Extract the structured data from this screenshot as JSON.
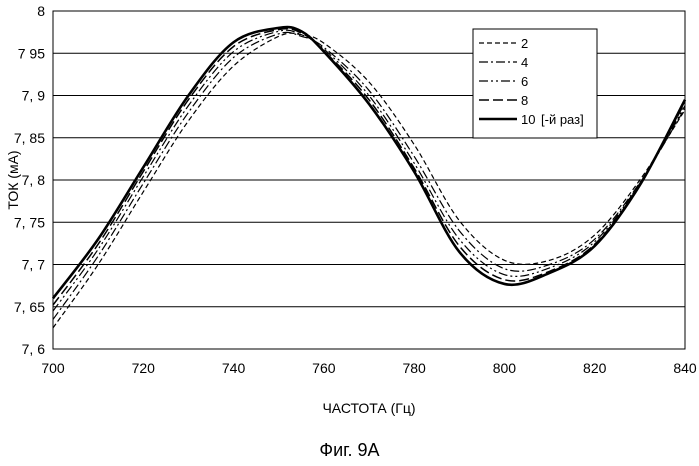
{
  "caption": "Фиг. 9A",
  "chart_data": {
    "type": "line",
    "xlabel": "ЧАСТОТА (Гц)",
    "ylabel": "ТОК (мА)",
    "xlim": [
      700,
      840
    ],
    "ylim": [
      7.6,
      8.0
    ],
    "x_ticks": [
      700,
      720,
      740,
      760,
      780,
      800,
      820,
      840
    ],
    "x_tick_labels": [
      "700",
      "720",
      "740",
      "760",
      "780",
      "800",
      "820",
      "840"
    ],
    "y_ticks": [
      7.6,
      7.65,
      7.7,
      7.75,
      7.8,
      7.85,
      7.9,
      7.95,
      8.0
    ],
    "y_tick_labels": [
      "7, 6",
      "7, 65",
      "7, 7",
      "7, 75",
      "7, 8",
      "7, 85",
      "7, 9",
      "7 95",
      "8"
    ],
    "grid": "horizontal",
    "legend_position": "top-right",
    "legend_suffix": "[-й раз]",
    "x": [
      700,
      710,
      720,
      730,
      740,
      750,
      755,
      760,
      770,
      780,
      790,
      800,
      810,
      820,
      830,
      840
    ],
    "series": [
      {
        "name": "2",
        "dash": "5,3",
        "width": 1.2,
        "values": [
          7.625,
          7.7,
          7.786,
          7.87,
          7.935,
          7.97,
          7.972,
          7.962,
          7.916,
          7.842,
          7.752,
          7.705,
          7.705,
          7.735,
          7.8,
          7.883
        ]
      },
      {
        "name": "4",
        "dash": "9,3,2,3",
        "width": 1.2,
        "values": [
          7.635,
          7.71,
          7.796,
          7.88,
          7.945,
          7.973,
          7.97,
          7.957,
          7.906,
          7.828,
          7.74,
          7.695,
          7.7,
          7.73,
          7.797,
          7.885
        ]
      },
      {
        "name": "6",
        "dash": "9,3,2,3,2,3",
        "width": 1.2,
        "values": [
          7.645,
          7.718,
          7.804,
          7.888,
          7.952,
          7.976,
          7.972,
          7.955,
          7.9,
          7.82,
          7.73,
          7.688,
          7.696,
          7.727,
          7.796,
          7.888
        ]
      },
      {
        "name": "8",
        "dash": "10,4",
        "width": 1.5,
        "values": [
          7.652,
          7.724,
          7.81,
          7.895,
          7.958,
          7.978,
          7.974,
          7.953,
          7.895,
          7.814,
          7.722,
          7.682,
          7.692,
          7.724,
          7.795,
          7.892
        ]
      },
      {
        "name": "10",
        "dash": "",
        "width": 2.6,
        "values": [
          7.66,
          7.73,
          7.815,
          7.9,
          7.963,
          7.98,
          7.976,
          7.952,
          7.89,
          7.81,
          7.715,
          7.677,
          7.69,
          7.722,
          7.794,
          7.895
        ]
      }
    ]
  }
}
